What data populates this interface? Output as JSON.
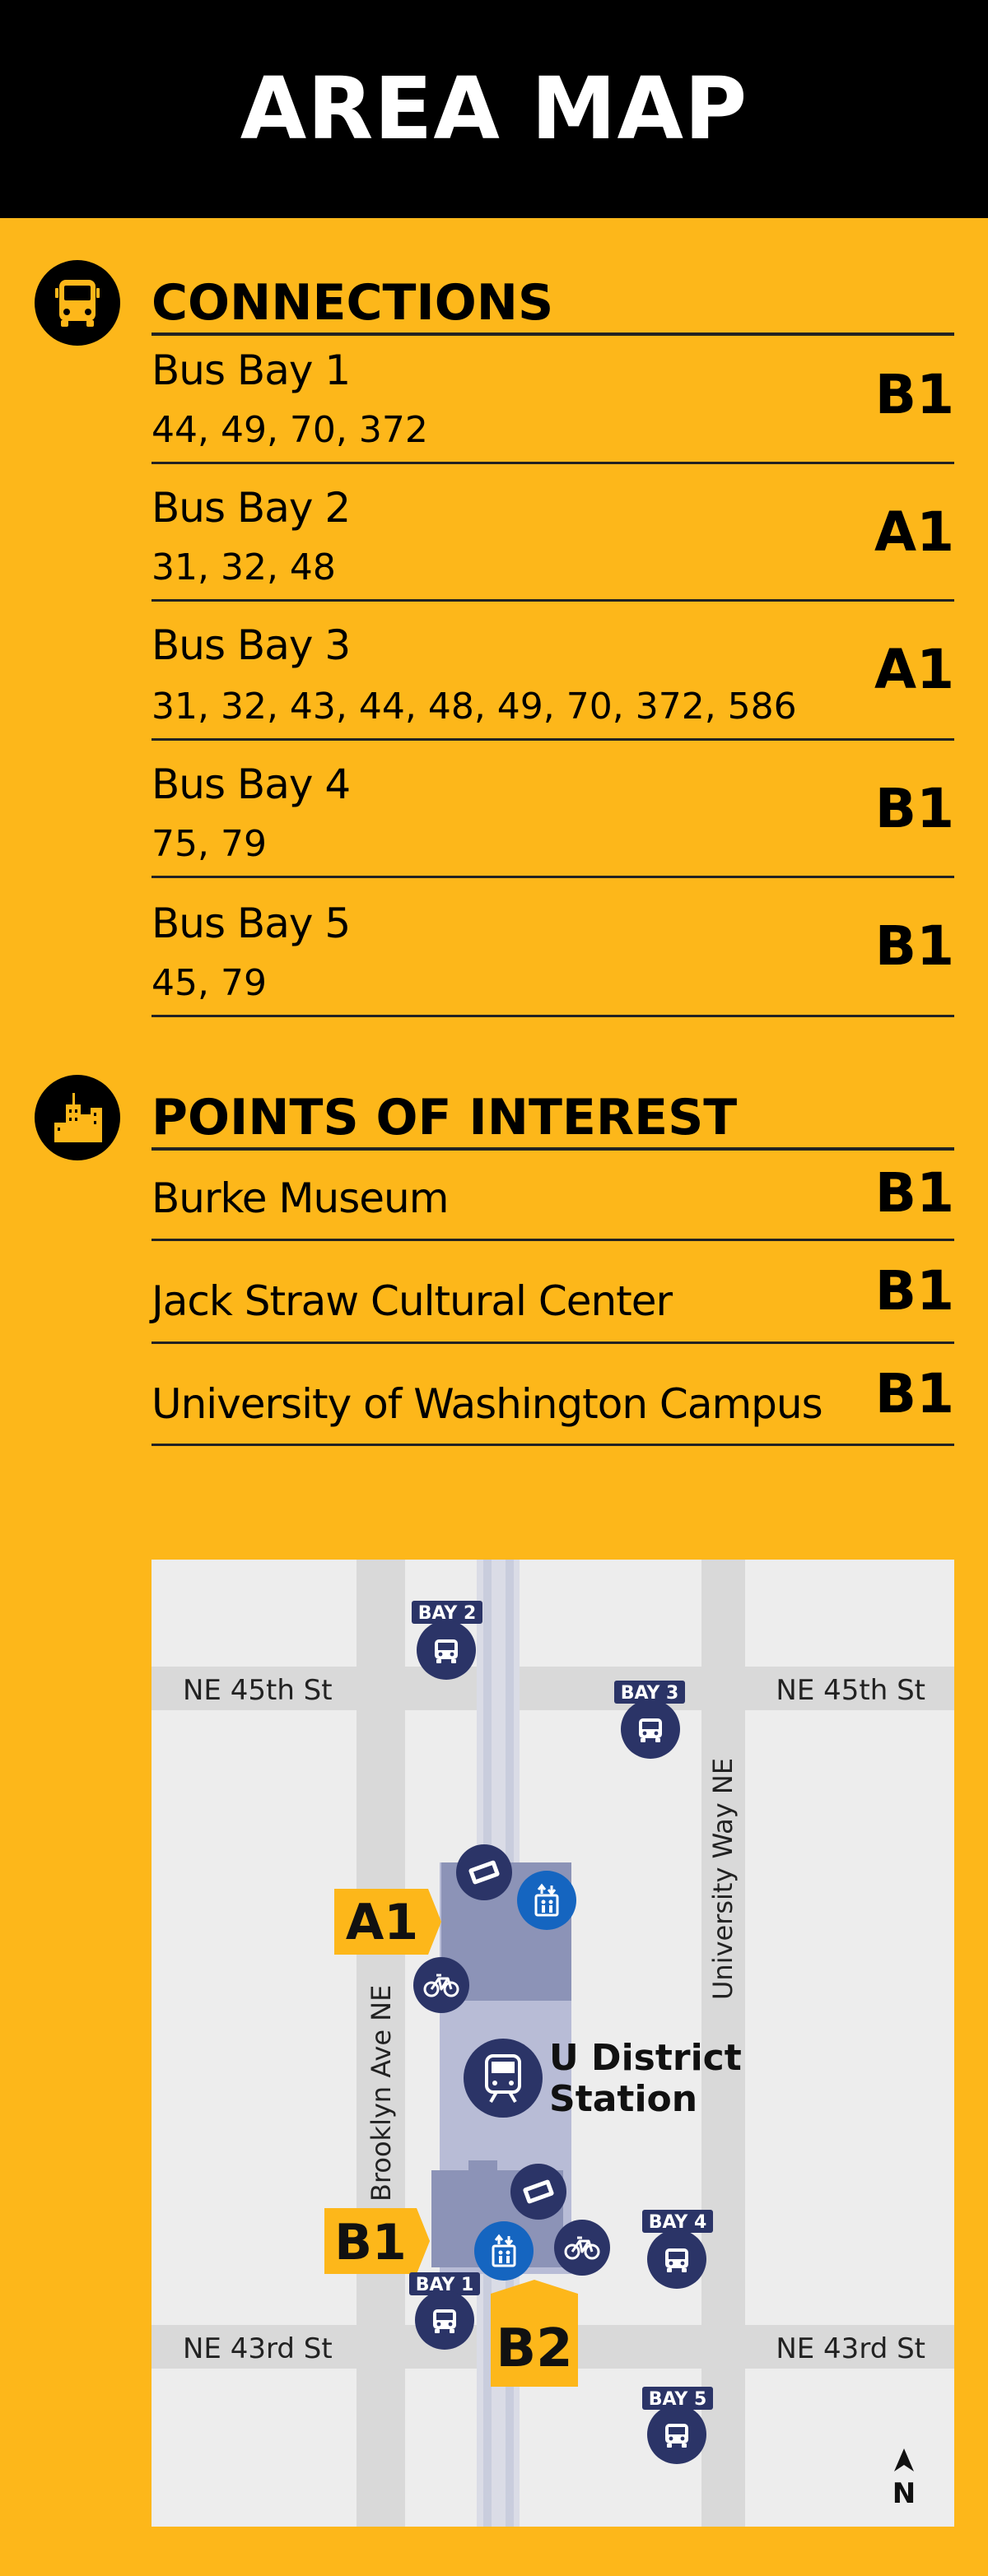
{
  "header": {
    "title": "AREA MAP"
  },
  "connections": {
    "title": "CONNECTIONS",
    "icon": "bus-icon",
    "rows": [
      {
        "name": "Bus Bay 1",
        "routes": "44, 49, 70, 372",
        "code": "B1"
      },
      {
        "name": "Bus Bay 2",
        "routes": "31, 32, 48",
        "code": "A1"
      },
      {
        "name": "Bus Bay 3",
        "routes": "31, 32, 43, 44, 48, 49, 70, 372, 586",
        "code": "A1"
      },
      {
        "name": "Bus Bay 4",
        "routes": "75, 79",
        "code": "B1"
      },
      {
        "name": "Bus Bay 5",
        "routes": "45, 79",
        "code": "B1"
      }
    ]
  },
  "poi": {
    "title": "POINTS OF INTEREST",
    "icon": "city-buildings-icon",
    "rows": [
      {
        "name": "Burke Museum",
        "code": "B1"
      },
      {
        "name": "Jack Straw Cultural Center",
        "code": "B1"
      },
      {
        "name": "University of Washington Campus",
        "code": "B1"
      }
    ]
  },
  "map": {
    "streets": {
      "ne45_left": "NE 45th St",
      "ne45_right": "NE 45th St",
      "ne43_left": "NE 43rd St",
      "ne43_right": "NE 43rd St",
      "brooklyn": "Brooklyn Ave NE",
      "university_way": "University Way NE"
    },
    "station": {
      "line1": "U District",
      "line2": "Station"
    },
    "entrances": {
      "a1": "A1",
      "b1": "B1",
      "b2": "B2"
    },
    "bays": {
      "bay1": "BAY 1",
      "bay2": "BAY 2",
      "bay3": "BAY 3",
      "bay4": "BAY 4",
      "bay5": "BAY 5"
    },
    "north": "N",
    "colors": {
      "accent": "#FDB71A",
      "navy": "#2B3467",
      "blue": "#1565C0",
      "platform": "#8C93B7",
      "street": "#D9D9D9"
    }
  }
}
